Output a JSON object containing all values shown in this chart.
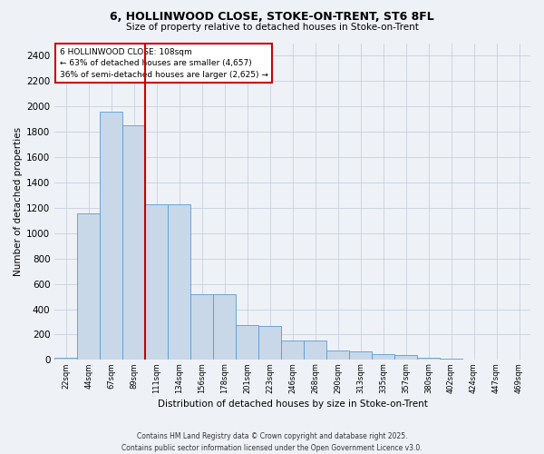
{
  "title1": "6, HOLLINWOOD CLOSE, STOKE-ON-TRENT, ST6 8FL",
  "title2": "Size of property relative to detached houses in Stoke-on-Trent",
  "xlabel": "Distribution of detached houses by size in Stoke-on-Trent",
  "ylabel": "Number of detached properties",
  "bar_labels": [
    "22sqm",
    "44sqm",
    "67sqm",
    "89sqm",
    "111sqm",
    "134sqm",
    "156sqm",
    "178sqm",
    "201sqm",
    "223sqm",
    "246sqm",
    "268sqm",
    "290sqm",
    "313sqm",
    "335sqm",
    "357sqm",
    "380sqm",
    "402sqm",
    "424sqm",
    "447sqm",
    "469sqm"
  ],
  "bar_values": [
    20,
    1160,
    1960,
    1850,
    1230,
    1230,
    520,
    520,
    275,
    265,
    155,
    150,
    75,
    70,
    45,
    40,
    15,
    10,
    5,
    3,
    2
  ],
  "bar_color": "#c8d8e8",
  "bar_edge_color": "#5b9bd5",
  "vline_color": "#cc0000",
  "annotation_title": "6 HOLLINWOOD CLOSE: 108sqm",
  "annotation_line1": "← 63% of detached houses are smaller (4,657)",
  "annotation_line2": "36% of semi-detached houses are larger (2,625) →",
  "annotation_box_color": "#cc0000",
  "ylim": [
    0,
    2500
  ],
  "yticks": [
    0,
    200,
    400,
    600,
    800,
    1000,
    1200,
    1400,
    1600,
    1800,
    2000,
    2200,
    2400
  ],
  "footer1": "Contains HM Land Registry data © Crown copyright and database right 2025.",
  "footer2": "Contains public sector information licensed under the Open Government Licence v3.0.",
  "background_color": "#eef2f7",
  "grid_color": "#c8d0dc"
}
